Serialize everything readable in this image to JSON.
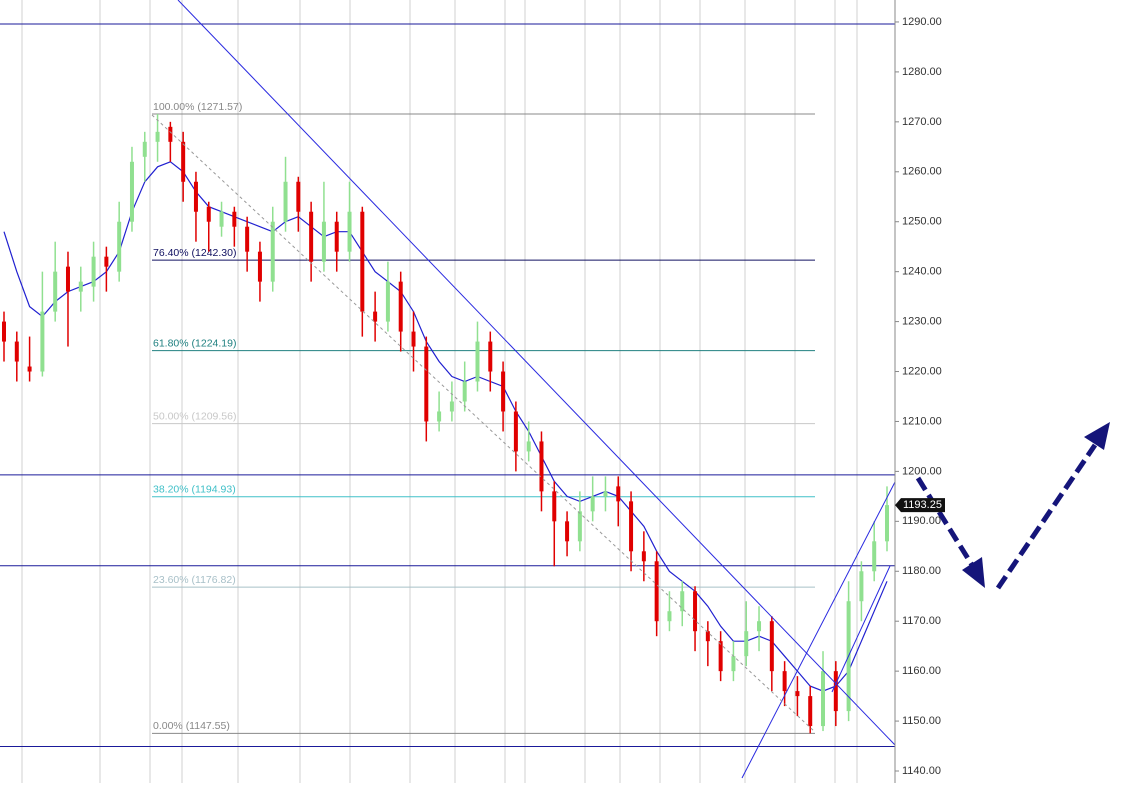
{
  "chart_data": {
    "type": "ohlc",
    "ylim": [
      1137.6,
      1294.4
    ],
    "yticks": [
      {
        "value": 1140,
        "label": "1140.00"
      },
      {
        "value": 1150,
        "label": "1150.00"
      },
      {
        "value": 1160,
        "label": "1160.00"
      },
      {
        "value": 1170,
        "label": "1170.00"
      },
      {
        "value": 1180,
        "label": "1180.00"
      },
      {
        "value": 1190,
        "label": "1190.00"
      },
      {
        "value": 1200,
        "label": "1200.00"
      },
      {
        "value": 1210,
        "label": "1210.00"
      },
      {
        "value": 1220,
        "label": "1220.00"
      },
      {
        "value": 1230,
        "label": "1230.00"
      },
      {
        "value": 1240,
        "label": "1240.00"
      },
      {
        "value": 1250,
        "label": "1250.00"
      },
      {
        "value": 1260,
        "label": "1260.00"
      },
      {
        "value": 1270,
        "label": "1270.00"
      },
      {
        "value": 1280,
        "label": "1280.00"
      },
      {
        "value": 1290,
        "label": "1290.00"
      }
    ],
    "up_color": "#90e090",
    "down_color": "#e00000",
    "ohlc": [
      [
        1230,
        1232,
        1222,
        1226
      ],
      [
        1226,
        1228,
        1218,
        1222
      ],
      [
        1221,
        1227,
        1218,
        1220
      ],
      [
        1220,
        1240,
        1219,
        1232
      ],
      [
        1232,
        1246,
        1230,
        1240
      ],
      [
        1241,
        1244,
        1225,
        1236
      ],
      [
        1236,
        1241,
        1232,
        1238
      ],
      [
        1237,
        1246,
        1234,
        1243
      ],
      [
        1243,
        1245,
        1236,
        1241
      ],
      [
        1240,
        1254,
        1238,
        1250
      ],
      [
        1250,
        1265,
        1248,
        1262
      ],
      [
        1263,
        1268,
        1258,
        1266
      ],
      [
        1266,
        1271.57,
        1262,
        1268
      ],
      [
        1269,
        1270,
        1262,
        1266
      ],
      [
        1266,
        1268,
        1254,
        1258
      ],
      [
        1258,
        1260,
        1246,
        1252
      ],
      [
        1253,
        1254,
        1244,
        1250
      ],
      [
        1249,
        1254,
        1247,
        1252
      ],
      [
        1252,
        1253,
        1245,
        1249
      ],
      [
        1249,
        1251,
        1240,
        1244
      ],
      [
        1244,
        1246,
        1234,
        1238
      ],
      [
        1238,
        1253,
        1236,
        1250
      ],
      [
        1250,
        1263,
        1248,
        1258
      ],
      [
        1258,
        1259,
        1248,
        1252
      ],
      [
        1252,
        1254,
        1238,
        1242
      ],
      [
        1242,
        1258,
        1240,
        1250
      ],
      [
        1250,
        1252,
        1240,
        1244
      ],
      [
        1244,
        1258,
        1242,
        1252
      ],
      [
        1252,
        1253,
        1227,
        1232
      ],
      [
        1232,
        1236,
        1226,
        1230
      ],
      [
        1230,
        1242,
        1228,
        1238
      ],
      [
        1238,
        1240,
        1224,
        1228
      ],
      [
        1228,
        1232,
        1220,
        1225
      ],
      [
        1225,
        1227,
        1206,
        1210
      ],
      [
        1210,
        1216,
        1208,
        1212
      ],
      [
        1212,
        1218,
        1210,
        1214
      ],
      [
        1214,
        1222,
        1212,
        1218
      ],
      [
        1218,
        1230,
        1216,
        1226
      ],
      [
        1226,
        1228,
        1216,
        1220
      ],
      [
        1220,
        1222,
        1208,
        1212
      ],
      [
        1212,
        1214,
        1200,
        1204
      ],
      [
        1204,
        1210,
        1202,
        1206
      ],
      [
        1206,
        1208,
        1192,
        1196
      ],
      [
        1196,
        1198,
        1181,
        1190
      ],
      [
        1190,
        1192,
        1183,
        1186
      ],
      [
        1186,
        1196,
        1184,
        1192
      ],
      [
        1192,
        1199,
        1190,
        1195
      ],
      [
        1195,
        1199,
        1192,
        1196
      ],
      [
        1197,
        1199,
        1189,
        1194
      ],
      [
        1194,
        1196,
        1180,
        1184
      ],
      [
        1184,
        1188,
        1178,
        1182
      ],
      [
        1182,
        1184,
        1167,
        1170
      ],
      [
        1170,
        1176,
        1168,
        1172
      ],
      [
        1172,
        1178,
        1169,
        1176
      ],
      [
        1176,
        1177,
        1164,
        1168
      ],
      [
        1168,
        1170,
        1161,
        1166
      ],
      [
        1166,
        1168,
        1158,
        1160
      ],
      [
        1160,
        1166,
        1158,
        1163
      ],
      [
        1163,
        1174,
        1161,
        1168
      ],
      [
        1168,
        1173,
        1164,
        1170
      ],
      [
        1170,
        1171,
        1156,
        1160
      ],
      [
        1160,
        1162,
        1153,
        1156
      ],
      [
        1156,
        1159,
        1151,
        1155
      ],
      [
        1155,
        1157,
        1147.55,
        1149
      ],
      [
        1149,
        1164,
        1148,
        1160
      ],
      [
        1160,
        1162,
        1149,
        1152
      ],
      [
        1152,
        1178,
        1150,
        1174
      ],
      [
        1174,
        1182,
        1170,
        1180
      ],
      [
        1180,
        1190,
        1178,
        1186
      ],
      [
        1186,
        1197,
        1184,
        1193.25
      ]
    ],
    "moving_average": {
      "color": "#2020d0",
      "values": [
        1248,
        1240,
        1233,
        1231,
        1234,
        1236,
        1237,
        1238,
        1240,
        1244,
        1252,
        1258,
        1261,
        1262,
        1260,
        1256,
        1253,
        1252,
        1251,
        1250,
        1249,
        1248,
        1250,
        1251,
        1249,
        1247,
        1248,
        1248,
        1244,
        1240,
        1238,
        1236,
        1232,
        1226,
        1222,
        1219,
        1218,
        1219,
        1218,
        1217,
        1212,
        1208,
        1203,
        1198,
        1195,
        1194,
        1195,
        1196,
        1195,
        1192,
        1189,
        1184,
        1180,
        1178,
        1176,
        1173,
        1169,
        1166,
        1166,
        1167,
        1166,
        1163,
        1160,
        1157,
        1156,
        1157,
        1160,
        1166,
        1172,
        1178
      ]
    },
    "fib_levels": [
      {
        "value": 1271.57,
        "label": "100.00% (1271.57)",
        "color": "#888888"
      },
      {
        "value": 1242.3,
        "label": "76.40% (1242.30)",
        "color": "#101060"
      },
      {
        "value": 1224.19,
        "label": "61.80% (1224.19)",
        "color": "#208080"
      },
      {
        "value": 1209.56,
        "label": "50.00% (1209.56)",
        "color": "#c8c8c8"
      },
      {
        "value": 1194.93,
        "label": "38.20% (1194.93)",
        "color": "#40c0c8"
      },
      {
        "value": 1176.82,
        "label": "23.60% (1176.82)",
        "color": "#a8c0c8"
      },
      {
        "value": 1147.55,
        "label": "0.00% (1147.55)",
        "color": "#888888"
      }
    ],
    "horizontal_lines": {
      "color": "#1a1a9a",
      "values": [
        1289.6,
        1199.3,
        1181.1,
        1144.9
      ]
    },
    "last_price": 1193.25
  }
}
